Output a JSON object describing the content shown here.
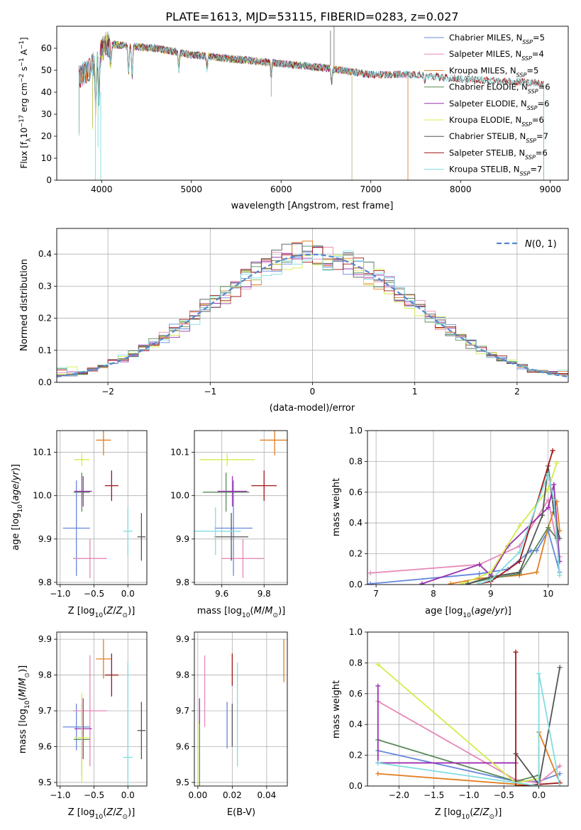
{
  "figure_title": "PLATE=1613, MJD=53115, FIBERID=0283, z=0.027",
  "colors": {
    "C1": "#6688dd",
    "C2": "#e688b8",
    "C3": "#e07f22",
    "C4": "#5a8a5a",
    "C5": "#9b30b0",
    "C6": "#d4ec4a",
    "C7": "#555555",
    "C8": "#a01818",
    "C9": "#80dde0"
  },
  "chart_data": [
    {
      "id": "spectrum",
      "type": "line",
      "xlabel": "wavelength [Angstrom, rest frame]",
      "ylabel": "Flux [f_λ 10^-17 erg cm^-2 s^-1 A^-1]",
      "xlim": [
        3500,
        9200
      ],
      "ylim": [
        0,
        70
      ],
      "xticks": [
        4000,
        5000,
        6000,
        7000,
        8000,
        9000
      ],
      "yticks": [
        0,
        10,
        20,
        30,
        40,
        50,
        60
      ],
      "grid": false,
      "legend_position": "top-right",
      "series": [
        {
          "name": "Chabrier MILES, N_SSP=5",
          "label_main": "Chabrier MILES, N",
          "label_sup": "=5",
          "color": "C1",
          "x_range": [
            3750,
            7420
          ]
        },
        {
          "name": "Salpeter MILES, N_SSP=4",
          "label_main": "Salpeter MILES, N",
          "label_sup": "=4",
          "color": "C2",
          "x_range": [
            3750,
            7420
          ]
        },
        {
          "name": "Kroupa MILES, N_SSP=5",
          "label_main": "Kroupa MILES, N",
          "label_sup": "=5",
          "color": "C3",
          "x_range": [
            3750,
            7420
          ]
        },
        {
          "name": "Chabrier ELODIE, N_SSP=6",
          "label_main": "Chabrier ELODIE, N",
          "label_sup": "=6",
          "color": "C4",
          "x_range": [
            3900,
            6790
          ]
        },
        {
          "name": "Salpeter ELODIE, N_SSP=6",
          "label_main": "Salpeter ELODIE, N",
          "label_sup": "=6",
          "color": "C5",
          "x_range": [
            3900,
            6790
          ]
        },
        {
          "name": "Kroupa ELODIE, N_SSP=6",
          "label_main": "Kroupa ELODIE, N",
          "label_sup": "=6",
          "color": "C6",
          "x_range": [
            3900,
            6790
          ]
        },
        {
          "name": "Chabrier STELIB, N_SSP=7",
          "label_main": "Chabrier STELIB, N",
          "label_sup": "=7",
          "color": "C7",
          "x_range": [
            3750,
            8930
          ]
        },
        {
          "name": "Salpeter STELIB, N_SSP=6",
          "label_main": "Salpeter STELIB, N",
          "label_sup": "=6",
          "color": "C8",
          "x_range": [
            3750,
            8930
          ]
        },
        {
          "name": "Kroupa STELIB, N_SSP=7",
          "label_main": "Kroupa STELIB, N",
          "label_sup": "=7",
          "color": "C9",
          "x_range": [
            3750,
            8930
          ]
        }
      ],
      "continuum": {
        "x": [
          3750,
          3900,
          4050,
          4300,
          4600,
          5000,
          5500,
          6000,
          6500,
          7000,
          7500,
          8000,
          8500,
          8930
        ],
        "y": [
          47,
          52,
          62,
          61,
          60,
          57,
          55,
          53,
          51,
          48,
          48,
          46,
          45,
          44
        ]
      }
    },
    {
      "id": "residuals",
      "type": "step",
      "xlabel": "(data-model)/error",
      "ylabel": "Normed distribution",
      "xlim": [
        -2.5,
        2.5
      ],
      "ylim": [
        0,
        0.48
      ],
      "xticks": [
        -2,
        -1,
        0,
        1,
        2
      ],
      "yticks": [
        0.0,
        0.1,
        0.2,
        0.3,
        0.4
      ],
      "grid": true,
      "legend_position": "top-right",
      "reference_curve": {
        "name": "N(0,1)",
        "color": "#5588cc",
        "style": "dashed"
      }
    },
    {
      "id": "age_vs_Z",
      "type": "errorbar",
      "xlabel": "Z [log10(Z/Z_sun)]",
      "ylabel": "age [log10(age/yr)]",
      "xlim": [
        -1.05,
        0.28
      ],
      "ylim": [
        9.795,
        10.15
      ],
      "xticks": [
        -1.0,
        -0.5,
        0.0
      ],
      "yticks": [
        9.8,
        9.9,
        10.0,
        10.1
      ],
      "grid": true,
      "points": [
        {
          "color": "C1",
          "x": -0.76,
          "xerr": 0.2,
          "y": 9.925,
          "yerr": 0.11
        },
        {
          "color": "C2",
          "x": -0.56,
          "xerr": 0.25,
          "y": 9.855,
          "yerr": 0.045
        },
        {
          "color": "C3",
          "x": -0.36,
          "xerr": 0.11,
          "y": 10.128,
          "yerr": 0.035
        },
        {
          "color": "C4",
          "x": -0.68,
          "xerr": 0.12,
          "y": 10.008,
          "yerr": 0.045
        },
        {
          "color": "C5",
          "x": -0.66,
          "xerr": 0.13,
          "y": 10.01,
          "yerr": 0.035
        },
        {
          "color": "C6",
          "x": -0.68,
          "xerr": 0.11,
          "y": 10.083,
          "yerr": 0.015
        },
        {
          "color": "C7",
          "x": 0.2,
          "xerr": 0.06,
          "y": 9.905,
          "yerr": 0.055
        },
        {
          "color": "C8",
          "x": -0.24,
          "xerr": 0.1,
          "y": 10.023,
          "yerr": 0.035
        },
        {
          "color": "C9",
          "x": 0.0,
          "xerr": 0.07,
          "y": 9.918,
          "yerr": 0.055
        }
      ]
    },
    {
      "id": "age_vs_mass",
      "type": "errorbar",
      "xlabel": "mass [log10(M/M_sun)]",
      "ylabel": "",
      "xlim": [
        9.47,
        9.91
      ],
      "ylim": [
        9.795,
        10.15
      ],
      "xticks": [
        9.6,
        9.8
      ],
      "yticks": [
        9.8,
        9.9,
        10.0,
        10.1
      ],
      "grid": true,
      "points": [
        {
          "color": "C1",
          "x": 9.655,
          "xerr": 0.09,
          "y": 9.925,
          "yerr": 0.11
        },
        {
          "color": "C2",
          "x": 9.7,
          "xerr": 0.1,
          "y": 9.855,
          "yerr": 0.045
        },
        {
          "color": "C3",
          "x": 9.85,
          "xerr": 0.07,
          "y": 10.128,
          "yerr": 0.035
        },
        {
          "color": "C4",
          "x": 9.62,
          "xerr": 0.11,
          "y": 10.008,
          "yerr": 0.045
        },
        {
          "color": "C5",
          "x": 9.65,
          "xerr": 0.07,
          "y": 10.01,
          "yerr": 0.035
        },
        {
          "color": "C6",
          "x": 9.625,
          "xerr": 0.13,
          "y": 10.083,
          "yerr": 0.015
        },
        {
          "color": "C7",
          "x": 9.645,
          "xerr": 0.08,
          "y": 9.905,
          "yerr": 0.055
        },
        {
          "color": "C8",
          "x": 9.8,
          "xerr": 0.06,
          "y": 10.023,
          "yerr": 0.035
        },
        {
          "color": "C9",
          "x": 9.57,
          "xerr": 0.12,
          "y": 9.918,
          "yerr": 0.055
        }
      ]
    },
    {
      "id": "mass_weight_vs_age",
      "type": "line",
      "xlabel": "age [log10(age/yr)]",
      "ylabel": "mass weight",
      "xlim": [
        6.85,
        10.35
      ],
      "ylim": [
        0,
        1.0
      ],
      "xticks": [
        7,
        8,
        9,
        10
      ],
      "yticks": [
        0.0,
        0.2,
        0.4,
        0.6,
        0.8,
        1.0
      ],
      "grid": true,
      "series": [
        {
          "color": "C1",
          "x": [
            6.9,
            8.8,
            9.3,
            9.7,
            9.8,
            10.0,
            10.2
          ],
          "y": [
            0.005,
            0.07,
            0.1,
            0.22,
            0.22,
            0.35,
            0.08
          ]
        },
        {
          "color": "C2",
          "x": [
            6.9,
            8.8,
            9.5,
            10.0,
            10.2
          ],
          "y": [
            0.075,
            0.13,
            0.25,
            0.55,
            0.18
          ]
        },
        {
          "color": "C3",
          "x": [
            8.3,
            8.8,
            9.5,
            9.8,
            10.0,
            10.15,
            10.2
          ],
          "y": [
            0.005,
            0.04,
            0.06,
            0.08,
            0.37,
            0.54,
            0.35
          ]
        },
        {
          "color": "C4",
          "x": [
            8.6,
            9.0,
            9.5,
            10.0,
            10.15
          ],
          "y": [
            0.005,
            0.04,
            0.07,
            0.37,
            0.3
          ]
        },
        {
          "color": "C5",
          "x": [
            7.8,
            8.8,
            9.0,
            9.3,
            10.0,
            10.1,
            10.2
          ],
          "y": [
            0.005,
            0.13,
            0.06,
            0.25,
            0.5,
            0.65,
            0.15
          ]
        },
        {
          "color": "C6",
          "x": [
            8.5,
            9.0,
            9.5,
            10.0,
            10.15
          ],
          "y": [
            0.005,
            0.08,
            0.38,
            0.62,
            0.79
          ]
        },
        {
          "color": "C7",
          "x": [
            8.6,
            9.0,
            9.5,
            9.9,
            10.0,
            10.1,
            10.2
          ],
          "y": [
            0.005,
            0.05,
            0.08,
            0.45,
            0.77,
            0.47,
            0.3
          ]
        },
        {
          "color": "C8",
          "x": [
            8.8,
            9.0,
            9.5,
            10.08
          ],
          "y": [
            0.005,
            0.02,
            0.15,
            0.87
          ]
        },
        {
          "color": "C9",
          "x": [
            8.8,
            9.0,
            9.5,
            10.0,
            10.1,
            10.2
          ],
          "y": [
            0.005,
            0.03,
            0.21,
            0.72,
            0.55,
            0.06
          ]
        }
      ]
    },
    {
      "id": "mass_vs_Z",
      "type": "errorbar",
      "xlabel": "Z [log10(Z/Z_sun)]",
      "ylabel": "mass [log10(M/M_sun)]",
      "xlim": [
        -1.05,
        0.28
      ],
      "ylim": [
        9.49,
        9.92
      ],
      "xticks": [
        -1.0,
        -0.5,
        0.0
      ],
      "yticks": [
        9.5,
        9.6,
        9.7,
        9.8,
        9.9
      ],
      "grid": true,
      "points": [
        {
          "color": "C1",
          "x": -0.76,
          "xerr": 0.2,
          "y": 9.655,
          "yerr": 0.065
        },
        {
          "color": "C2",
          "x": -0.56,
          "xerr": 0.25,
          "y": 9.7,
          "yerr": 0.155
        },
        {
          "color": "C3",
          "x": -0.36,
          "xerr": 0.11,
          "y": 9.845,
          "yerr": 0.055
        },
        {
          "color": "C4",
          "x": -0.68,
          "xerr": 0.12,
          "y": 9.62,
          "yerr": 0.1
        },
        {
          "color": "C5",
          "x": -0.66,
          "xerr": 0.13,
          "y": 9.65,
          "yerr": 0.085
        },
        {
          "color": "C6",
          "x": -0.68,
          "xerr": 0.11,
          "y": 9.625,
          "yerr": 0.125
        },
        {
          "color": "C7",
          "x": 0.2,
          "xerr": 0.06,
          "y": 9.645,
          "yerr": 0.08
        },
        {
          "color": "C8",
          "x": -0.24,
          "xerr": 0.1,
          "y": 9.8,
          "yerr": 0.06
        },
        {
          "color": "C9",
          "x": 0.0,
          "xerr": 0.07,
          "y": 9.57,
          "yerr": 0.265
        }
      ]
    },
    {
      "id": "mass_vs_EBV",
      "type": "errorbar",
      "xlabel": "E(B-V)",
      "ylabel": "",
      "xlim": [
        -0.002,
        0.052
      ],
      "ylim": [
        9.49,
        9.92
      ],
      "xticks": [
        0.0,
        0.02,
        0.04
      ],
      "yticks": [
        9.5,
        9.6,
        9.7,
        9.8,
        9.9
      ],
      "grid": true,
      "points": [
        {
          "color": "C1",
          "x": 0.017,
          "y": 9.66,
          "yerr": 0.065
        },
        {
          "color": "C2",
          "x": 0.004,
          "y": 9.755,
          "yerr": 0.1
        },
        {
          "color": "C3",
          "x": 0.05,
          "y": 9.84,
          "yerr": 0.06
        },
        {
          "color": "C4",
          "x": 0.001,
          "y": 9.58,
          "yerr": 0.09
        },
        {
          "color": "C5",
          "x": 0.001,
          "y": 9.7,
          "yerr": 0.035
        },
        {
          "color": "C6",
          "x": 0.0,
          "y": 9.58,
          "yerr": 0.09
        },
        {
          "color": "C7",
          "x": 0.02,
          "y": 9.66,
          "yerr": 0.06
        },
        {
          "color": "C8",
          "x": 0.02,
          "y": 9.815,
          "yerr": 0.045
        },
        {
          "color": "C9",
          "x": 0.023,
          "y": 9.69,
          "yerr": 0.145
        }
      ]
    },
    {
      "id": "mass_weight_vs_Z",
      "type": "line",
      "xlabel": "Z [log10(Z/Z_sun)]",
      "ylabel": "mass weight",
      "xlim": [
        -2.45,
        0.42
      ],
      "ylim": [
        0,
        1.0
      ],
      "xticks": [
        -2.0,
        -1.5,
        -1.0,
        -0.5,
        0.0
      ],
      "yticks": [
        0.0,
        0.2,
        0.4,
        0.6,
        0.8,
        1.0
      ],
      "grid": true,
      "series": [
        {
          "color": "C1",
          "x": [
            -2.3,
            -0.33,
            0.0,
            0.3
          ],
          "y": [
            0.23,
            0.03,
            0.03,
            0.08
          ]
        },
        {
          "color": "C2",
          "x": [
            -2.3,
            -0.33,
            0.0,
            0.3
          ],
          "y": [
            0.55,
            0.04,
            0.02,
            0.13
          ]
        },
        {
          "color": "C3",
          "x": [
            -2.3,
            0.0,
            0.0,
            0.3
          ],
          "y": [
            0.08,
            0.0,
            0.35,
            0.02
          ]
        },
        {
          "color": "C4",
          "x": [
            -2.3,
            -0.33,
            0.0,
            0.0
          ],
          "y": [
            0.3,
            0.03,
            0.07,
            0.0
          ]
        },
        {
          "color": "C5",
          "x": [
            -2.3,
            -2.3,
            -0.33
          ],
          "y": [
            0.65,
            0.15,
            0.15
          ]
        },
        {
          "color": "C6",
          "x": [
            -2.3,
            -0.33,
            0.0
          ],
          "y": [
            0.79,
            0.02,
            0.05
          ]
        },
        {
          "color": "C7",
          "x": [
            -0.33,
            0.0,
            0.3
          ],
          "y": [
            0.21,
            0.01,
            0.77
          ]
        },
        {
          "color": "C8",
          "x": [
            -0.33,
            -0.33,
            0.3
          ],
          "y": [
            0.87,
            0.0,
            0.02
          ]
        },
        {
          "color": "C9",
          "x": [
            -2.3,
            0.0,
            0.0,
            0.3
          ],
          "y": [
            0.15,
            0.0,
            0.73,
            0.0
          ]
        }
      ]
    }
  ]
}
